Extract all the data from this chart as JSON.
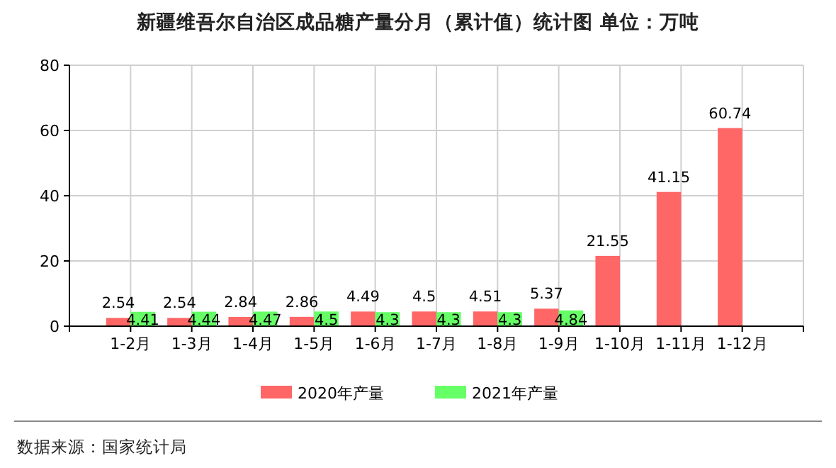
{
  "chart_data": {
    "type": "bar",
    "title": "新疆维吾尔自治区成品糖产量分月（累计值）统计图  单位：万吨",
    "categories": [
      "1-2月",
      "1-3月",
      "1-4月",
      "1-5月",
      "1-6月",
      "1-7月",
      "1-8月",
      "1-9月",
      "1-10月",
      "1-11月",
      "1-12月"
    ],
    "series": [
      {
        "name": "2020年产量",
        "color": "#ff6666",
        "values": [
          2.54,
          2.54,
          2.84,
          2.86,
          4.49,
          4.5,
          4.51,
          5.37,
          21.55,
          41.15,
          60.74
        ]
      },
      {
        "name": "2021年产量",
        "color": "#66ff66",
        "values": [
          4.41,
          4.44,
          4.47,
          4.5,
          4.3,
          4.3,
          4.3,
          4.84,
          null,
          null,
          null
        ]
      }
    ],
    "ylim": [
      0,
      80
    ],
    "yticks": [
      0,
      20,
      40,
      60,
      80
    ],
    "grid": true,
    "legend": "bottom",
    "data_labels": true,
    "annotations": [
      "数据来源：国家统计局"
    ]
  }
}
